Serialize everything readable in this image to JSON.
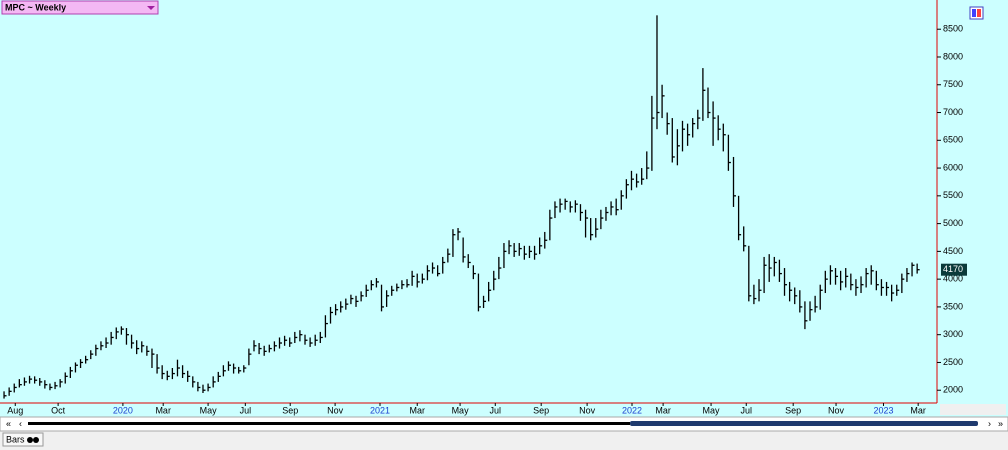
{
  "chart_data": {
    "type": "hlc",
    "title": "MPC ~ Weekly",
    "bar_color": "#000000",
    "axis_color": "#e00000",
    "background": "#ccffff",
    "xlim": [
      -0.4,
      182.5
    ],
    "xticks": [
      {
        "value": 2.2,
        "label": "Aug"
      },
      {
        "value": 10.6,
        "label": "Oct"
      },
      {
        "value": 23.3,
        "label": "2020"
      },
      {
        "value": 31.2,
        "label": "Mar"
      },
      {
        "value": 40,
        "label": "May"
      },
      {
        "value": 47.3,
        "label": "Jul"
      },
      {
        "value": 56.1,
        "label": "Sep"
      },
      {
        "value": 64.9,
        "label": "Nov"
      },
      {
        "value": 73.7,
        "label": "2021"
      },
      {
        "value": 81,
        "label": "Mar"
      },
      {
        "value": 89.4,
        "label": "May"
      },
      {
        "value": 96.3,
        "label": "Jul"
      },
      {
        "value": 105.3,
        "label": "Sep"
      },
      {
        "value": 114.3,
        "label": "Nov"
      },
      {
        "value": 123.1,
        "label": "2022"
      },
      {
        "value": 129.2,
        "label": "Mar"
      },
      {
        "value": 138.6,
        "label": "May"
      },
      {
        "value": 145.5,
        "label": "Jul"
      },
      {
        "value": 154.7,
        "label": "Sep"
      },
      {
        "value": 163.1,
        "label": "Nov"
      },
      {
        "value": 172.4,
        "label": "2023"
      },
      {
        "value": 179.2,
        "label": "Mar"
      }
    ],
    "ylim": [
      1770,
      8990
    ],
    "yticks": [
      2000,
      2500,
      3000,
      3500,
      4000,
      4500,
      5000,
      5500,
      6000,
      6500,
      7000,
      7500,
      8000,
      8500
    ],
    "high": [
      1980,
      2050,
      2120,
      2200,
      2230,
      2260,
      2250,
      2220,
      2180,
      2120,
      2150,
      2200,
      2320,
      2420,
      2500,
      2560,
      2620,
      2720,
      2820,
      2880,
      2950,
      3050,
      3130,
      3150,
      3120,
      3000,
      2900,
      2880,
      2800,
      2750,
      2650,
      2450,
      2350,
      2400,
      2550,
      2450,
      2350,
      2250,
      2150,
      2100,
      2120,
      2250,
      2330,
      2450,
      2520,
      2480,
      2420,
      2450,
      2750,
      2900,
      2850,
      2800,
      2820,
      2880,
      2950,
      2980,
      2950,
      3050,
      3080,
      3000,
      2950,
      3000,
      3050,
      3350,
      3500,
      3550,
      3600,
      3650,
      3720,
      3700,
      3780,
      3900,
      3980,
      4020,
      3900,
      3800,
      3880,
      3920,
      3980,
      4000,
      4150,
      4100,
      4100,
      4250,
      4300,
      4250,
      4400,
      4550,
      4900,
      4920,
      4750,
      4450,
      4250,
      4100,
      3700,
      3950,
      4150,
      4400,
      4650,
      4700,
      4650,
      4650,
      4600,
      4600,
      4600,
      4750,
      4850,
      5250,
      5400,
      5450,
      5450,
      5400,
      5420,
      5350,
      5250,
      5100,
      5100,
      5250,
      5300,
      5400,
      5450,
      5600,
      5800,
      5950,
      5900,
      6000,
      6300,
      7300,
      8750,
      7500,
      7000,
      6900,
      6700,
      6850,
      6800,
      6900,
      7050,
      7800,
      7450,
      7200,
      6950,
      6800,
      6600,
      6200,
      5500,
      4950,
      4600,
      3900,
      4000,
      4400,
      4450,
      4400,
      4350,
      4200,
      3950,
      3850,
      3800,
      3600,
      3600,
      3700,
      3900,
      4150,
      4250,
      4200,
      4150,
      4200,
      4100,
      4000,
      4050,
      4200,
      4250,
      4150,
      4000,
      3950,
      3900,
      3900,
      4100,
      4200,
      4300,
      4280
    ],
    "low": [
      1850,
      1900,
      1960,
      2050,
      2080,
      2120,
      2120,
      2080,
      2030,
      2000,
      2020,
      2050,
      2120,
      2220,
      2320,
      2400,
      2480,
      2560,
      2620,
      2720,
      2760,
      2820,
      2920,
      3000,
      2820,
      2750,
      2650,
      2680,
      2620,
      2400,
      2300,
      2200,
      2180,
      2200,
      2250,
      2220,
      2150,
      2050,
      1980,
      1950,
      1980,
      2050,
      2150,
      2250,
      2350,
      2300,
      2300,
      2320,
      2450,
      2700,
      2650,
      2620,
      2680,
      2700,
      2750,
      2800,
      2780,
      2850,
      2880,
      2820,
      2780,
      2800,
      2850,
      2950,
      3200,
      3350,
      3400,
      3450,
      3550,
      3500,
      3600,
      3680,
      3800,
      3850,
      3420,
      3500,
      3700,
      3780,
      3820,
      3850,
      3880,
      3850,
      3920,
      3980,
      4100,
      4050,
      4100,
      4300,
      4400,
      4700,
      4300,
      4200,
      4000,
      3420,
      3480,
      3600,
      3800,
      4000,
      4200,
      4450,
      4400,
      4420,
      4350,
      4380,
      4350,
      4450,
      4550,
      4700,
      5100,
      5200,
      5250,
      5200,
      5200,
      5050,
      4750,
      4700,
      4750,
      4900,
      5050,
      5150,
      5150,
      5250,
      5450,
      5600,
      5650,
      5700,
      5800,
      5950,
      6700,
      6900,
      6600,
      6100,
      6050,
      6300,
      6400,
      6550,
      6700,
      6850,
      6900,
      6400,
      6500,
      6300,
      5950,
      5300,
      4700,
      4500,
      3600,
      3550,
      3600,
      3750,
      3950,
      4050,
      3950,
      3700,
      3600,
      3550,
      3400,
      3100,
      3250,
      3400,
      3450,
      3750,
      3900,
      3900,
      3800,
      3850,
      3800,
      3700,
      3750,
      3850,
      3900,
      3800,
      3700,
      3700,
      3600,
      3700,
      3750,
      3950,
      4050,
      4100
    ],
    "close": [
      1900,
      1980,
      2050,
      2100,
      2150,
      2200,
      2180,
      2150,
      2100,
      2050,
      2080,
      2150,
      2250,
      2350,
      2450,
      2500,
      2550,
      2650,
      2750,
      2800,
      2850,
      2950,
      3050,
      3100,
      3000,
      2850,
      2750,
      2800,
      2700,
      2650,
      2400,
      2300,
      2250,
      2300,
      2400,
      2300,
      2250,
      2150,
      2050,
      2000,
      2050,
      2150,
      2250,
      2350,
      2450,
      2400,
      2350,
      2400,
      2650,
      2800,
      2750,
      2700,
      2750,
      2800,
      2850,
      2900,
      2850,
      2950,
      3000,
      2900,
      2850,
      2900,
      2950,
      3200,
      3400,
      3450,
      3500,
      3550,
      3650,
      3600,
      3700,
      3800,
      3900,
      3950,
      3500,
      3700,
      3800,
      3850,
      3900,
      3900,
      4050,
      3950,
      4000,
      4150,
      4200,
      4100,
      4300,
      4450,
      4800,
      4850,
      4400,
      4300,
      4100,
      3500,
      3600,
      3800,
      4000,
      4200,
      4500,
      4600,
      4500,
      4550,
      4450,
      4500,
      4450,
      4600,
      4700,
      5100,
      5300,
      5350,
      5400,
      5300,
      5350,
      5200,
      5100,
      4800,
      4900,
      5100,
      5200,
      5300,
      5250,
      5500,
      5700,
      5800,
      5750,
      5800,
      6000,
      6900,
      7000,
      7300,
      6800,
      6200,
      6400,
      6700,
      6600,
      6800,
      6900,
      7400,
      7000,
      6900,
      6700,
      6600,
      6100,
      5500,
      4800,
      4600,
      3700,
      3650,
      3800,
      4250,
      4200,
      4300,
      4100,
      3900,
      3800,
      3700,
      3500,
      3250,
      3450,
      3500,
      3800,
      4000,
      4150,
      4050,
      3950,
      4050,
      3900,
      3850,
      3900,
      4100,
      4150,
      3900,
      3850,
      3850,
      3750,
      3800,
      4000,
      4100,
      4250,
      4170
    ]
  },
  "status_bar": {
    "mode": "Bars"
  }
}
